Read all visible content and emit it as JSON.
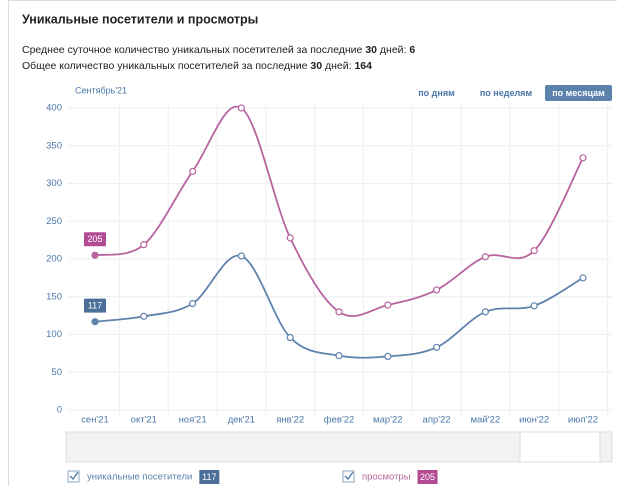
{
  "chart_data": {
    "type": "line",
    "title": "Уникальные посетители и просмотры",
    "summary": [
      {
        "before": "Среднее суточное количество уникальных посетителей за последние ",
        "days": 30,
        "after": " дней: ",
        "value": 6
      },
      {
        "before": "Общее количество уникальных посетителей за последние ",
        "days": 30,
        "after": " дней: ",
        "value": 164
      }
    ],
    "period_label": "Сентябрь'21",
    "buttons": [
      "по дням",
      "по неделям",
      "по месяцам"
    ],
    "active_button": 2,
    "categories": [
      "сен'21",
      "окт'21",
      "ноя'21",
      "дек'21",
      "янв'22",
      "фев'22",
      "мар'22",
      "апр'22",
      "май'22",
      "июн'22",
      "июл'22"
    ],
    "series": [
      {
        "name": "уникальные посетители",
        "color": "#5f83ad",
        "badge_color": "#4a6f98",
        "values": [
          117,
          124,
          141,
          204,
          96,
          72,
          71,
          83,
          130,
          138,
          175
        ]
      },
      {
        "name": "просмотры",
        "color": "#b8649e",
        "badge_color": "#b34b94",
        "values": [
          205,
          219,
          316,
          400,
          228,
          130,
          139,
          159,
          203,
          211,
          334
        ]
      }
    ],
    "ylim": [
      0,
      400
    ],
    "yticks": [
      0,
      50,
      100,
      150,
      200,
      250,
      300,
      350,
      400
    ],
    "grid": true
  }
}
